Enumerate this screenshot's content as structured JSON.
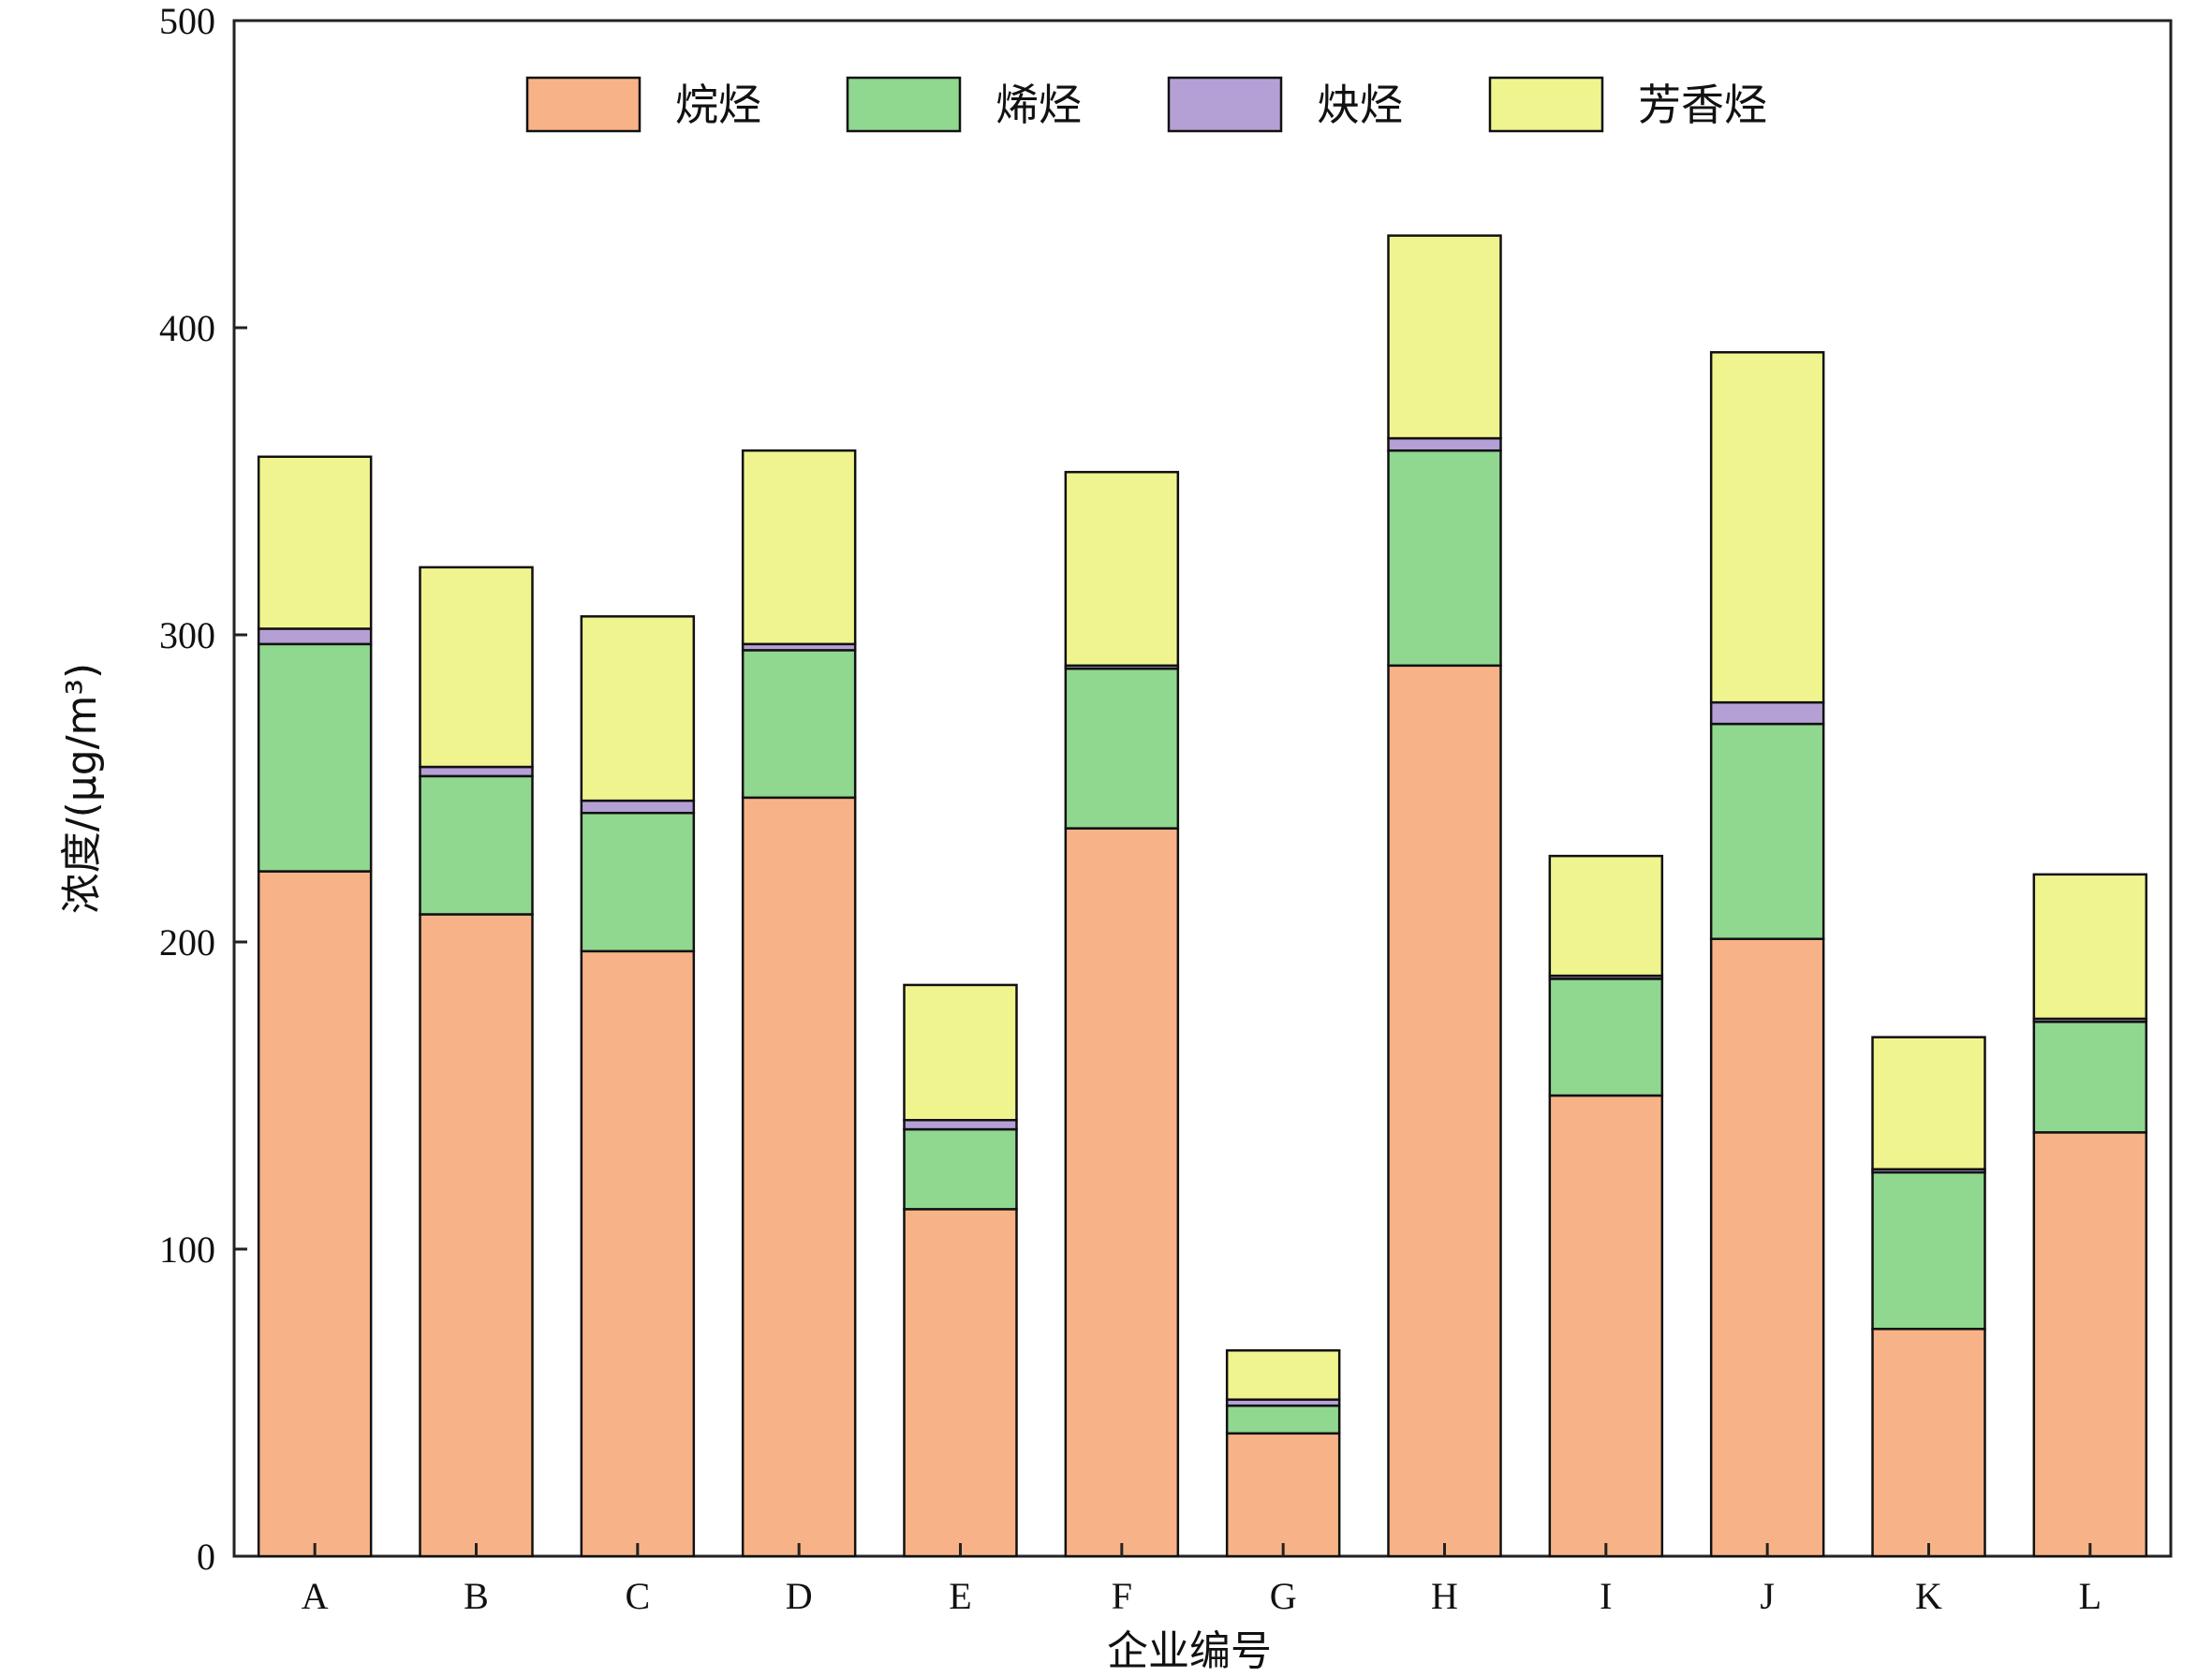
{
  "chart_data": {
    "type": "bar",
    "stacked": true,
    "categories": [
      "A",
      "B",
      "C",
      "D",
      "E",
      "F",
      "G",
      "H",
      "I",
      "J",
      "K",
      "L"
    ],
    "series": [
      {
        "name": "烷烃",
        "color": "#F7B387",
        "values": [
          223,
          209,
          197,
          247,
          113,
          237,
          40,
          290,
          150,
          201,
          74,
          138
        ]
      },
      {
        "name": "烯烃",
        "color": "#90D790",
        "values": [
          74,
          45,
          45,
          48,
          26,
          52,
          9,
          70,
          38,
          70,
          51,
          36
        ]
      },
      {
        "name": "炔烃",
        "color": "#B5A0D6",
        "values": [
          5,
          3,
          4,
          2,
          3,
          1,
          2,
          4,
          1,
          7,
          1,
          1
        ]
      },
      {
        "name": "芳香烃",
        "color": "#F0F48F",
        "values": [
          56,
          65,
          60,
          63,
          44,
          63,
          16,
          66,
          39,
          114,
          43,
          47
        ]
      }
    ],
    "xlabel": "企业编号",
    "ylabel": "浓度/(μg/m³)",
    "ylim": [
      0,
      500
    ],
    "yticks": [
      0,
      100,
      200,
      300,
      400,
      500
    ],
    "legend_position": "top-center",
    "grid": false
  }
}
